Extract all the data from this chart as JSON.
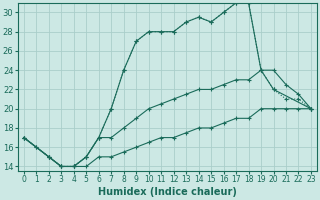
{
  "xlabel": "Humidex (Indice chaleur)",
  "background_color": "#cce8e4",
  "grid_color": "#aaceca",
  "line_color": "#1a6b5a",
  "xlim": [
    -0.5,
    23.5
  ],
  "ylim": [
    13.5,
    31.0
  ],
  "yticks": [
    14,
    16,
    18,
    20,
    22,
    24,
    26,
    28,
    30
  ],
  "xticks": [
    0,
    1,
    2,
    3,
    4,
    5,
    6,
    7,
    8,
    9,
    10,
    11,
    12,
    13,
    14,
    15,
    16,
    17,
    18,
    19,
    20,
    21,
    22,
    23
  ],
  "series": [
    {
      "x": [
        0,
        1,
        2,
        3,
        4,
        5,
        6,
        7,
        8,
        9,
        10,
        11,
        12,
        13,
        14,
        15,
        16,
        17,
        18,
        19,
        20,
        23
      ],
      "y": [
        17,
        16,
        15,
        14,
        14,
        15,
        17,
        20,
        24,
        27,
        28,
        28,
        28,
        29,
        29.5,
        29,
        30,
        31,
        31,
        24,
        22,
        20
      ],
      "dotted": false
    },
    {
      "x": [
        0,
        1,
        2,
        3,
        4,
        5,
        6,
        7,
        8,
        9,
        10,
        11,
        12,
        13,
        14,
        15,
        16,
        17,
        18,
        19,
        20,
        21,
        22,
        23
      ],
      "y": [
        17,
        16,
        15,
        14,
        14,
        15,
        17,
        20,
        24,
        27,
        28,
        28,
        28,
        29,
        29.5,
        29,
        30,
        31,
        31,
        24,
        22,
        21,
        21,
        20
      ],
      "dotted": true
    },
    {
      "x": [
        0,
        2,
        3,
        4,
        5,
        6,
        7,
        8,
        9,
        10,
        11,
        12,
        13,
        14,
        15,
        16,
        17,
        18,
        19,
        20,
        21,
        22,
        23
      ],
      "y": [
        17,
        15,
        14,
        14,
        15,
        17,
        17,
        18,
        19,
        20,
        20.5,
        21,
        21.5,
        22,
        22,
        22.5,
        23,
        23,
        24,
        24,
        22.5,
        21.5,
        20
      ],
      "dotted": false
    },
    {
      "x": [
        0,
        2,
        3,
        4,
        5,
        6,
        7,
        8,
        9,
        10,
        11,
        12,
        13,
        14,
        15,
        16,
        17,
        18,
        19,
        20,
        21,
        22,
        23
      ],
      "y": [
        17,
        15,
        14,
        14,
        14,
        15,
        15,
        15.5,
        16,
        16.5,
        17,
        17,
        17.5,
        18,
        18,
        18.5,
        19,
        19,
        20,
        20,
        20,
        20,
        20
      ],
      "dotted": false
    }
  ]
}
